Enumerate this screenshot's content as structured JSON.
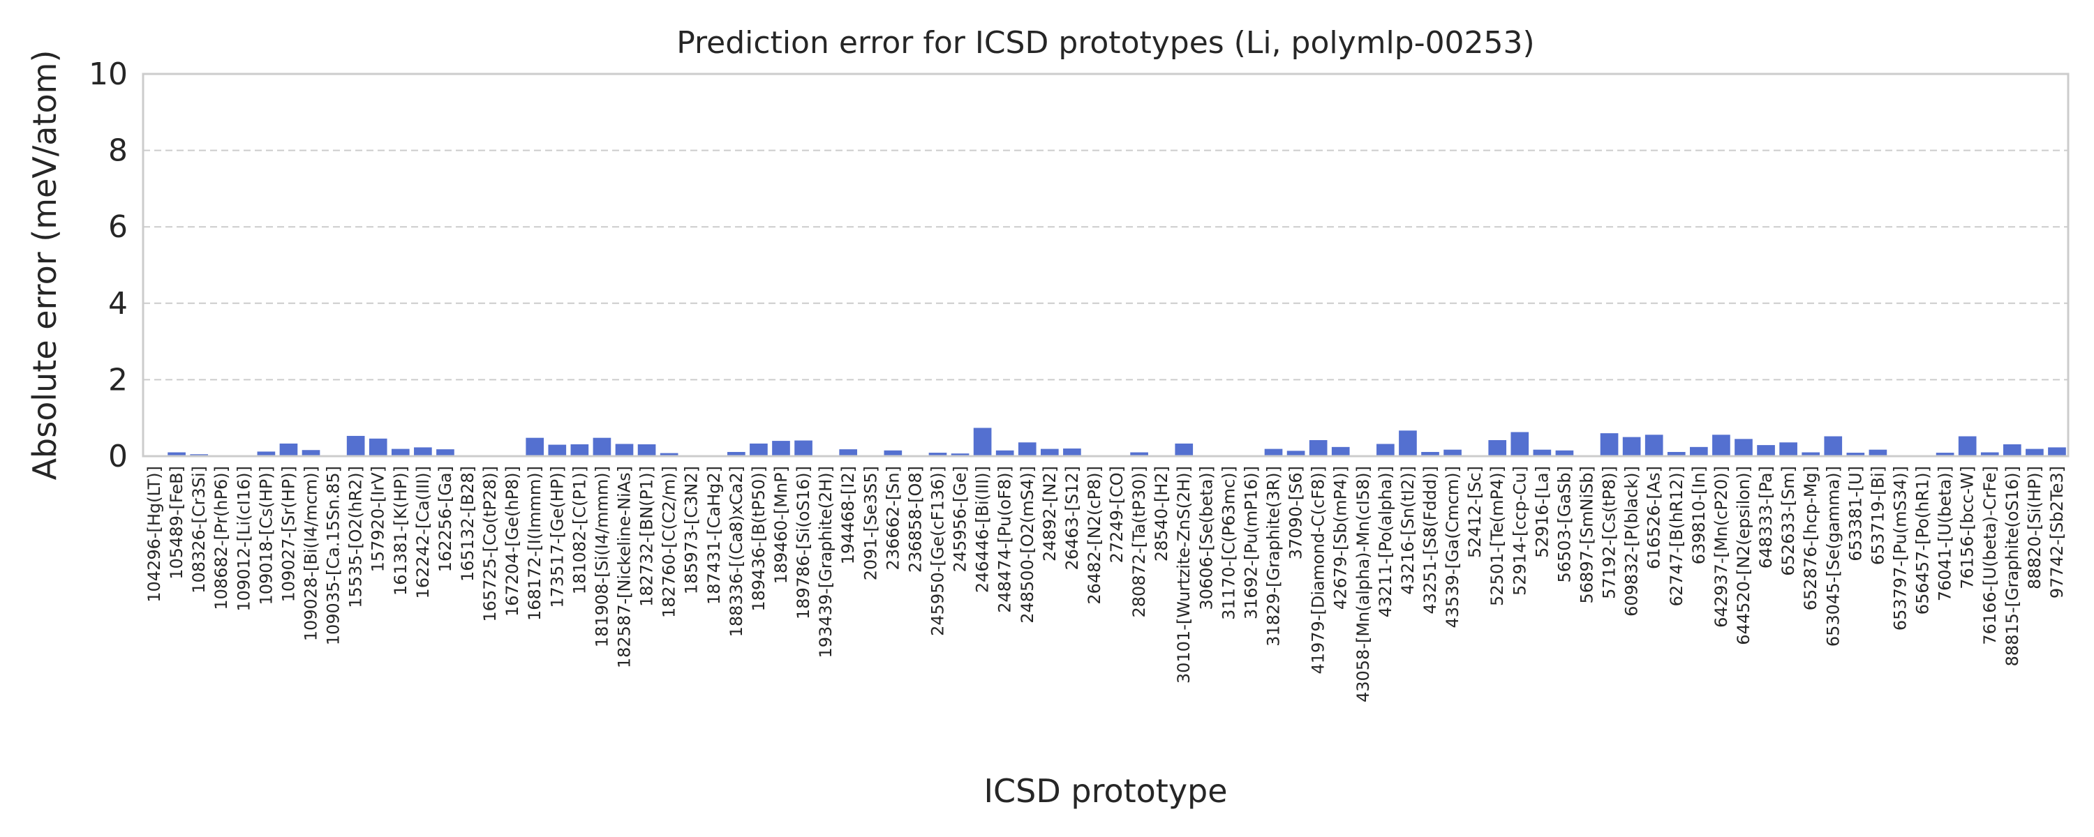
{
  "chart_data": {
    "type": "bar",
    "title": "Prediction error for ICSD prototypes (Li, polymlp-00253)",
    "xlabel": "ICSD prototype",
    "ylabel": "Absolute error (meV/atom)",
    "ylim": [
      0,
      10
    ],
    "yticks": [
      0,
      2,
      4,
      6,
      8,
      10
    ],
    "grid": "y dashed",
    "bar_color": "#5470d0",
    "categories": [
      "104296-[Hg(LT)]",
      "105489-[FeB]",
      "108326-[Cr3Si]",
      "108682-[Pr(hP6)]",
      "109012-[Li(cI16)]",
      "109018-[Cs(HP)]",
      "109027-[Sr(HP)]",
      "109028-[Bi(I4/mcm)]",
      "109035-[Ca.15Sn.85]",
      "15535-[O2(hR2)]",
      "157920-[IrV]",
      "161381-[K(HP)]",
      "162242-[Ca(III)]",
      "162256-[Ga]",
      "165132-[B28]",
      "165725-[Co(tP28)]",
      "167204-[Ge(hP8)]",
      "168172-[I(Immm)]",
      "173517-[Ge(HP)]",
      "181082-[C(P1)]",
      "181908-[Si(I4/mmm)]",
      "182587-[Nickeline-NiAs]",
      "182732-[BN(P1)]",
      "182760-[C(C2/m)]",
      "185973-[C3N2]",
      "187431-[CaHg2]",
      "188336-[(Ca8)xCa2]",
      "189436-[B(tP50)]",
      "189460-[MnP]",
      "189786-[Si(oS16)]",
      "193439-[Graphite(2H)]",
      "194468-[I2]",
      "2091-[Se3S5]",
      "236662-[Sn]",
      "236858-[O8]",
      "245950-[Ge(cF136)]",
      "245956-[Ge]",
      "246446-[Bi(III)]",
      "248474-[Pu(oF8)]",
      "248500-[O2(mS4)]",
      "24892-[N2]",
      "26463-[S12]",
      "26482-[N2(cP8)]",
      "27249-[CO]",
      "280872-[Ta(tP30)]",
      "28540-[H2]",
      "30101-[Wurtzite-ZnS(2H)]",
      "30606-[Se(beta)]",
      "31170-[C(P63mc)]",
      "31692-[Pu(mP16)]",
      "31829-[Graphite(3R)]",
      "37090-[S6]",
      "41979-[Diamond-C(cF8)]",
      "42679-[Sb(mP4)]",
      "43058-[Mn(alpha)-Mn(cI58)]",
      "43211-[Po(alpha)]",
      "43216-[Sn(tI2)]",
      "43251-[S8(Fddd)]",
      "43539-[Ga(Cmcm)]",
      "52412-[Sc]",
      "52501-[Te(mP4)]",
      "52914-[ccp-Cu]",
      "52916-[La]",
      "56503-[GaSb]",
      "56897-[SmNiSb]",
      "57192-[Cs(tP8)]",
      "609832-[P(black)]",
      "616526-[As]",
      "62747-[B(hR12)]",
      "639810-[In]",
      "642937-[Mn(cP20)]",
      "644520-[N2(epsilon)]",
      "648333-[Pa]",
      "652633-[Sm]",
      "652876-[hcp-Mg]",
      "653045-[Se(gamma)]",
      "653381-[U]",
      "653719-[Bi]",
      "653797-[Pu(mS34)]",
      "656457-[Po(hR1)]",
      "76041-[U(beta)]",
      "76156-[bcc-W]",
      "76166-[U(beta)-CrFe]",
      "88815-[Graphite(oS16)]",
      "88820-[Si(HP)]",
      "97742-[Sb2Te3]"
    ],
    "values": [
      0.0,
      0.1,
      0.05,
      0.0,
      0.0,
      0.12,
      0.33,
      0.16,
      0.0,
      0.53,
      0.46,
      0.19,
      0.23,
      0.18,
      0.0,
      0.0,
      0.0,
      0.48,
      0.3,
      0.31,
      0.48,
      0.32,
      0.31,
      0.08,
      0.0,
      0.0,
      0.11,
      0.33,
      0.4,
      0.41,
      0.0,
      0.18,
      0.0,
      0.15,
      0.0,
      0.09,
      0.07,
      0.74,
      0.15,
      0.36,
      0.19,
      0.2,
      0.0,
      0.0,
      0.1,
      0.0,
      0.33,
      0.0,
      0.0,
      0.0,
      0.19,
      0.14,
      0.42,
      0.24,
      0.0,
      0.32,
      0.67,
      0.11,
      0.17,
      0.0,
      0.42,
      0.63,
      0.17,
      0.15,
      0.0,
      0.6,
      0.5,
      0.56,
      0.11,
      0.24,
      0.56,
      0.45,
      0.29,
      0.36,
      0.1,
      0.52,
      0.09,
      0.17,
      0.0,
      0.0,
      0.09,
      0.52,
      0.1,
      0.31,
      0.19,
      0.23
    ]
  }
}
